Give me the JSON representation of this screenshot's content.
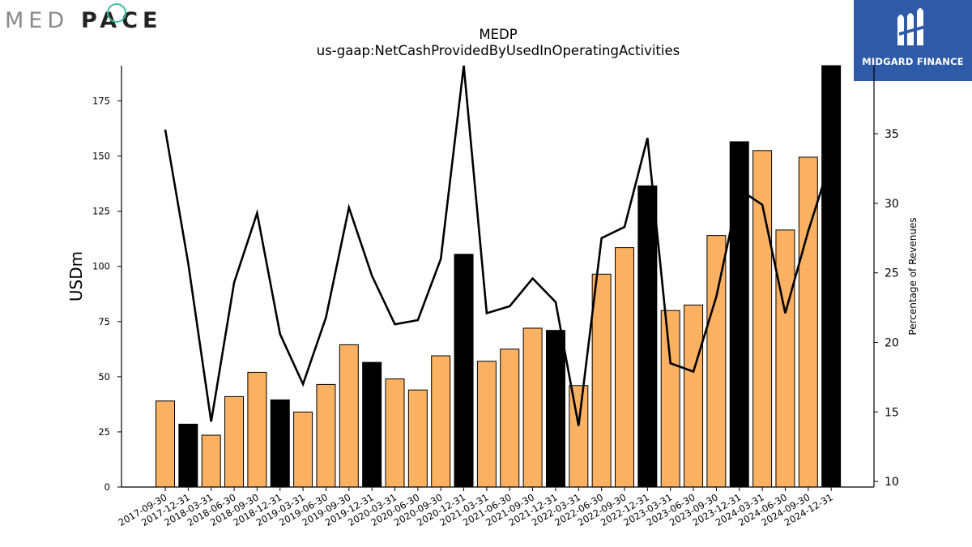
{
  "branding": {
    "left_logo_text": "MEDPACE",
    "left_logo_prefix": "MED",
    "left_logo_suffix": "PACE",
    "right_logo_text": "MIDGARD FINANCE",
    "right_logo_bg": "#2f5aa8"
  },
  "chart_data": {
    "type": "bar",
    "title": "MEDP",
    "subtitle": "us-gaap:NetCashProvidedByUsedInOperatingActivities",
    "ylabel": "USDm",
    "y2label": "Percentage of Revenues",
    "ylim": [
      0,
      191
    ],
    "y2lim": [
      9.6,
      39.9
    ],
    "yticks": [
      0,
      25,
      50,
      75,
      100,
      125,
      150,
      175
    ],
    "y2ticks": [
      10,
      15,
      20,
      25,
      30,
      35
    ],
    "grid": false,
    "legend": "none",
    "colors": {
      "quarter_bar": "#fbb162",
      "year_end_bar": "#000000",
      "line": "#000000"
    },
    "categories": [
      "2017-09-30",
      "2017-12-31",
      "2018-03-31",
      "2018-06-30",
      "2018-09-30",
      "2018-12-31",
      "2019-03-31",
      "2019-06-30",
      "2019-09-30",
      "2019-12-31",
      "2020-03-31",
      "2020-06-30",
      "2020-09-30",
      "2020-12-31",
      "2021-03-31",
      "2021-06-30",
      "2021-09-30",
      "2021-12-31",
      "2022-03-31",
      "2022-06-30",
      "2022-09-30",
      "2022-12-31",
      "2023-03-31",
      "2023-06-30",
      "2023-09-30",
      "2023-12-31",
      "2024-03-31",
      "2024-06-30",
      "2024-09-30",
      "2024-12-31"
    ],
    "series": [
      {
        "type": "bar",
        "values": [
          39,
          28.5,
          23.5,
          41,
          52,
          39.5,
          34,
          46.5,
          64.5,
          56.5,
          49,
          44,
          59.5,
          105.5,
          57,
          62.5,
          72,
          71,
          46,
          96.5,
          108.5,
          136.5,
          80,
          82.5,
          114,
          156.5,
          152.5,
          116.5,
          149.5,
          191
        ],
        "year_end": [
          false,
          true,
          false,
          false,
          false,
          true,
          false,
          false,
          false,
          true,
          false,
          false,
          false,
          true,
          false,
          false,
          false,
          true,
          false,
          false,
          false,
          true,
          false,
          false,
          false,
          true,
          false,
          false,
          false,
          true
        ]
      },
      {
        "type": "line",
        "axis": "right",
        "values": [
          35.3,
          25.7,
          14.3,
          24.3,
          29.3,
          20.6,
          17.0,
          21.8,
          29.7,
          24.8,
          21.3,
          21.6,
          26.0,
          39.9,
          22.1,
          22.6,
          24.6,
          22.9,
          14.0,
          27.5,
          28.3,
          34.7,
          18.5,
          17.9,
          23.3,
          31.0,
          29.9,
          22.1,
          28.0,
          33.2
        ]
      }
    ]
  }
}
